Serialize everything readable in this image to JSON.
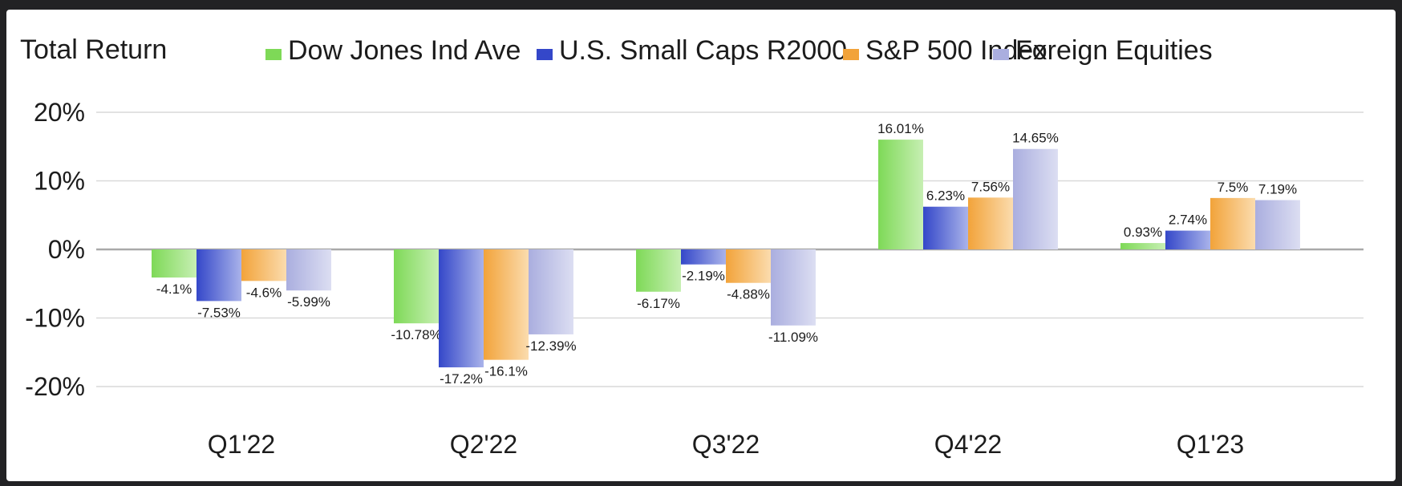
{
  "chart_data": {
    "type": "bar",
    "title": "Total Return",
    "categories": [
      "Q1'22",
      "Q2'22",
      "Q3'22",
      "Q4'22",
      "Q1'23"
    ],
    "series": [
      {
        "name": "Dow Jones Ind Ave",
        "color": "#7ed957",
        "color_light": "#c7efb3",
        "values": [
          -4.1,
          -10.78,
          -6.17,
          16.01,
          0.93
        ],
        "labels": [
          "-4.1%",
          "-10.78%",
          "-6.17%",
          "16.01%",
          "0.93%"
        ]
      },
      {
        "name": "U.S. Small Caps R2000",
        "color": "#3447c9",
        "color_light": "#a9b3ea",
        "values": [
          -7.53,
          -17.2,
          -2.19,
          6.23,
          2.74
        ],
        "labels": [
          "-7.53%",
          "-17.2%",
          "-2.19%",
          "6.23%",
          "2.74%"
        ]
      },
      {
        "name": "S&P 500 Index",
        "color": "#f2a33a",
        "color_light": "#fbdcae",
        "values": [
          -4.6,
          -16.1,
          -4.88,
          7.56,
          7.5
        ],
        "labels": [
          "-4.6%",
          "-16.1%",
          "-4.88%",
          "7.56%",
          "7.5%"
        ]
      },
      {
        "name": "Foreign Equities",
        "color": "#aaaedf",
        "color_light": "#dcdef2",
        "values": [
          -5.99,
          -12.39,
          -11.09,
          14.65,
          7.19
        ],
        "labels": [
          "-5.99%",
          "-12.39%",
          "-11.09%",
          "14.65%",
          "7.19%"
        ]
      }
    ],
    "yticks": [
      20,
      10,
      0,
      -10,
      -20
    ],
    "ytick_labels": [
      "20%",
      "10%",
      "0%",
      "-10%",
      "-20%"
    ],
    "ylim": [
      -20,
      20
    ],
    "grid": true,
    "legend_placement": "top",
    "xlabel": "",
    "ylabel": ""
  }
}
